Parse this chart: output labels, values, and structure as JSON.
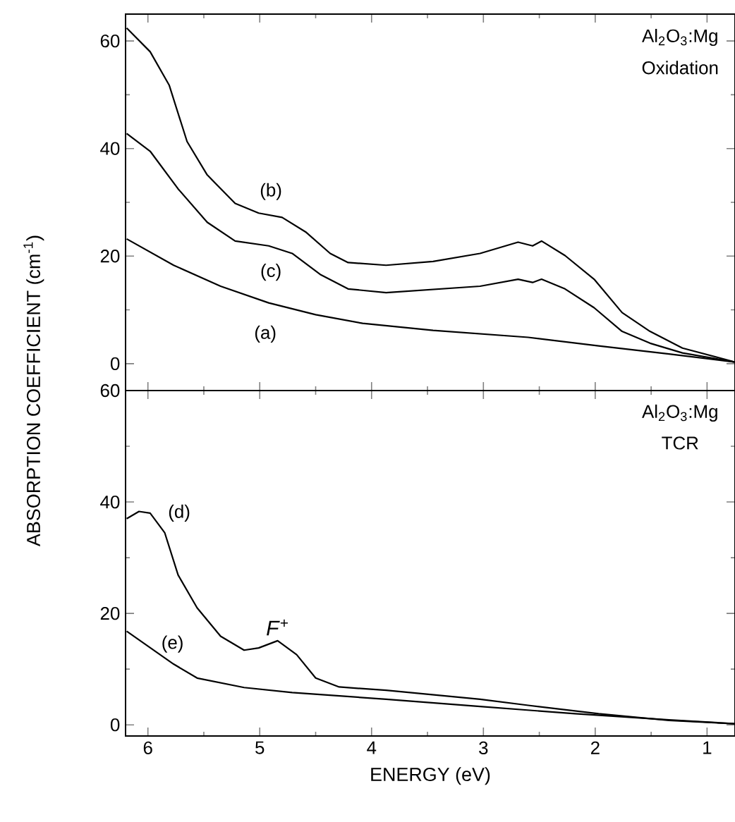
{
  "chart_data": [
    {
      "type": "line",
      "ylabel": "ABSORPTION COEFFICIENT (cm$^{-1}$)",
      "xlim": [
        6.2,
        0.75
      ],
      "ylim": [
        -5,
        65
      ],
      "xticks": [
        6,
        5,
        4,
        3,
        2,
        1
      ],
      "yticks": [
        0,
        20,
        40,
        60
      ],
      "tick_labels": "y",
      "marker": "none",
      "line_style": "solid",
      "annotations": [
        "Al$_{2}$O$_{3}$:Mg",
        "Oxidation"
      ],
      "series": [
        {
          "name": "(b)",
          "color": "#000000",
          "x": [
            6.19,
            5.98,
            5.81,
            5.65,
            5.47,
            5.22,
            5.01,
            4.8,
            4.59,
            4.37,
            4.21,
            3.87,
            3.45,
            3.03,
            2.69,
            2.56,
            2.48,
            2.27,
            2.01,
            1.76,
            1.51,
            1.22,
            0.75
          ],
          "values": [
            62.4,
            58,
            51.8,
            41.3,
            35.1,
            29.8,
            28,
            27.2,
            24.5,
            20.5,
            18.8,
            18.3,
            19,
            20.5,
            22.6,
            21.9,
            22.8,
            20.1,
            15.7,
            9.5,
            6,
            2.9,
            0.3
          ]
        },
        {
          "name": "(c)",
          "color": "#000000",
          "x": [
            6.19,
            5.98,
            5.73,
            5.47,
            5.22,
            4.92,
            4.71,
            4.46,
            4.21,
            3.87,
            3.45,
            3.03,
            2.69,
            2.56,
            2.48,
            2.27,
            2.01,
            1.76,
            1.51,
            1.22,
            0.75
          ],
          "values": [
            42.8,
            39.5,
            32.5,
            26.3,
            22.8,
            21.9,
            20.5,
            16.6,
            13.9,
            13.2,
            13.8,
            14.4,
            15.7,
            15.1,
            15.7,
            13.9,
            10.4,
            6,
            3.8,
            2,
            0.3
          ]
        },
        {
          "name": "(a)",
          "color": "#000000",
          "x": [
            6.19,
            5.77,
            5.35,
            4.92,
            4.5,
            4.08,
            3.45,
            2.6,
            1.97,
            1.34,
            0.75
          ],
          "values": [
            23.2,
            18.3,
            14.4,
            11.3,
            9.1,
            7.5,
            6.2,
            4.9,
            3.3,
            1.8,
            0.3
          ]
        }
      ]
    },
    {
      "type": "line",
      "xlabel": "ENERGY (eV)",
      "xlim": [
        6.2,
        0.75
      ],
      "ylim": [
        -2,
        60
      ],
      "xticks": [
        6,
        5,
        4,
        3,
        2,
        1
      ],
      "yticks": [
        0,
        20,
        40,
        60
      ],
      "marker": "none",
      "line_style": "solid",
      "annotations": [
        "Al$_{2}$O$_{3}$:Mg",
        "TCR",
        {
          "text": "*F*$^{+}$",
          "x": 4.84,
          "y": 15.1
        }
      ],
      "series": [
        {
          "name": "(d)",
          "color": "#000000",
          "x": [
            6.19,
            6.08,
            5.98,
            5.85,
            5.73,
            5.56,
            5.35,
            5.14,
            5.01,
            4.84,
            4.67,
            4.5,
            4.29,
            3.87,
            3.45,
            3.03,
            2.6,
            1.97,
            1.34,
            0.75
          ],
          "values": [
            37,
            38.3,
            38,
            34.5,
            26.9,
            21,
            15.9,
            13.4,
            13.8,
            15.1,
            12.6,
            8.4,
            6.8,
            6.2,
            5.4,
            4.6,
            3.5,
            2,
            0.8,
            0.2
          ]
        },
        {
          "name": "(e)",
          "color": "#000000",
          "x": [
            6.19,
            5.77,
            5.56,
            5.14,
            4.71,
            3.87,
            3.03,
            2.18,
            1.34,
            0.75
          ],
          "values": [
            16.8,
            10.9,
            8.4,
            6.7,
            5.8,
            4.6,
            3.3,
            2,
            0.9,
            0.2
          ]
        }
      ]
    }
  ]
}
